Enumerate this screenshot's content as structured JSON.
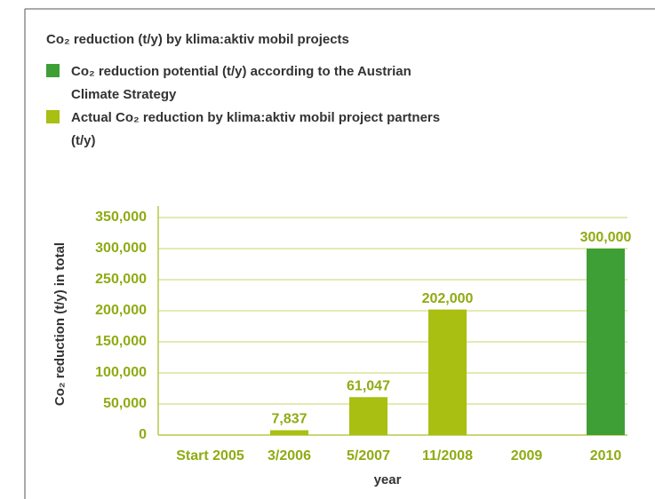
{
  "chart_data": {
    "type": "bar",
    "title": "Co₂ reduction (t/y) by klima:aktiv mobil projects",
    "y_label": "Co₂ reduction (t/y) in total",
    "x_label": "year",
    "categories": [
      "Start 2005",
      "3/2006",
      "5/2007",
      "11/2008",
      "2009",
      "2010"
    ],
    "series": [
      {
        "name": "Co₂ reduction potential (t/y) according to the Austrian Climate Strategy",
        "color": "#3e9f36",
        "values": [
          null,
          null,
          null,
          null,
          null,
          300000
        ],
        "value_labels": [
          null,
          null,
          null,
          null,
          null,
          "300,000"
        ]
      },
      {
        "name": "Actual Co₂ reduction by klima:aktiv mobil project partners (t/y)",
        "color": "#a9bf12",
        "values": [
          null,
          7837,
          61047,
          202000,
          null,
          null
        ],
        "value_labels": [
          null,
          "7,837",
          "61,047",
          "202,000",
          null,
          null
        ]
      }
    ],
    "ylim": [
      0,
      350000
    ],
    "yticks": [
      {
        "value": 0,
        "label": "0"
      },
      {
        "value": 50000,
        "label": "50,000"
      },
      {
        "value": 100000,
        "label": "100,000"
      },
      {
        "value": 150000,
        "label": "150,000"
      },
      {
        "value": 200000,
        "label": "200,000"
      },
      {
        "value": 250000,
        "label": "250,000"
      },
      {
        "value": 300000,
        "label": "300,000"
      },
      {
        "value": 350000,
        "label": "350,000"
      }
    ],
    "grid": true
  }
}
